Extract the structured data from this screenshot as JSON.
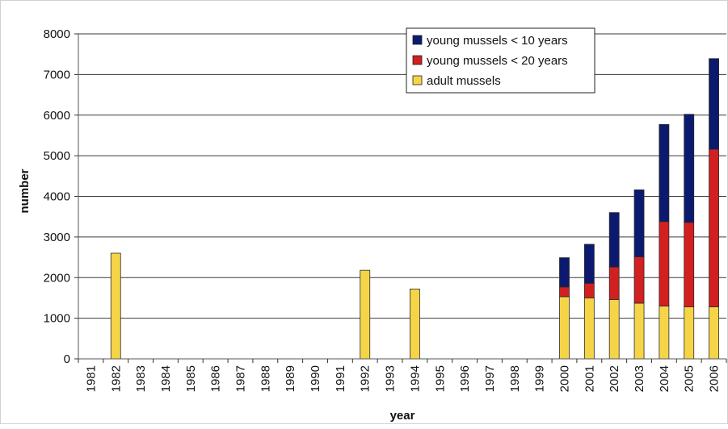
{
  "chart_data": {
    "type": "bar",
    "stacked": true,
    "title": "",
    "xlabel": "year",
    "ylabel": "number",
    "ylim": [
      0,
      8000
    ],
    "yticks": [
      0,
      1000,
      2000,
      3000,
      4000,
      5000,
      6000,
      7000,
      8000
    ],
    "grid": true,
    "legend_position": "top-right",
    "categories": [
      "1981",
      "1982",
      "1983",
      "1984",
      "1985",
      "1986",
      "1987",
      "1988",
      "1989",
      "1990",
      "1991",
      "1992",
      "1993",
      "1994",
      "1995",
      "1996",
      "1997",
      "1998",
      "1999",
      "2000",
      "2001",
      "2002",
      "2003",
      "2004",
      "2005",
      "2006"
    ],
    "series": [
      {
        "name": "adult mussels",
        "color": "#f5d547",
        "values": [
          0,
          2600,
          0,
          0,
          0,
          0,
          0,
          0,
          0,
          0,
          0,
          2180,
          0,
          1720,
          0,
          0,
          0,
          0,
          0,
          1530,
          1500,
          1460,
          1370,
          1300,
          1280,
          1280
        ]
      },
      {
        "name": "young mussels < 20 years",
        "color": "#d21f1f",
        "values": [
          0,
          0,
          0,
          0,
          0,
          0,
          0,
          0,
          0,
          0,
          0,
          0,
          0,
          0,
          0,
          0,
          0,
          0,
          0,
          240,
          360,
          800,
          1140,
          2080,
          2080,
          3880
        ]
      },
      {
        "name": "young mussels < 10 years",
        "color": "#0b1a6e",
        "values": [
          0,
          0,
          0,
          0,
          0,
          0,
          0,
          0,
          0,
          0,
          0,
          0,
          0,
          0,
          0,
          0,
          0,
          0,
          0,
          720,
          960,
          1340,
          1650,
          2390,
          2660,
          2230
        ]
      }
    ],
    "legend_order": [
      "young mussels < 10 years",
      "young mussels < 20 years",
      "adult mussels"
    ]
  }
}
